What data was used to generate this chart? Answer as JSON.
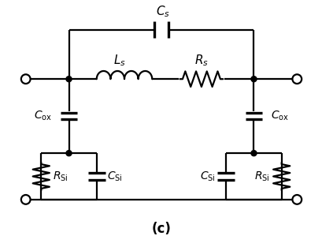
{
  "title": "(c)",
  "background_color": "#ffffff",
  "line_color": "#000000",
  "line_width": 1.6,
  "fig_width": 4.1,
  "fig_height": 3.13,
  "dpi": 100,
  "xlim": [
    0,
    10
  ],
  "ylim": [
    0,
    7.8
  ]
}
